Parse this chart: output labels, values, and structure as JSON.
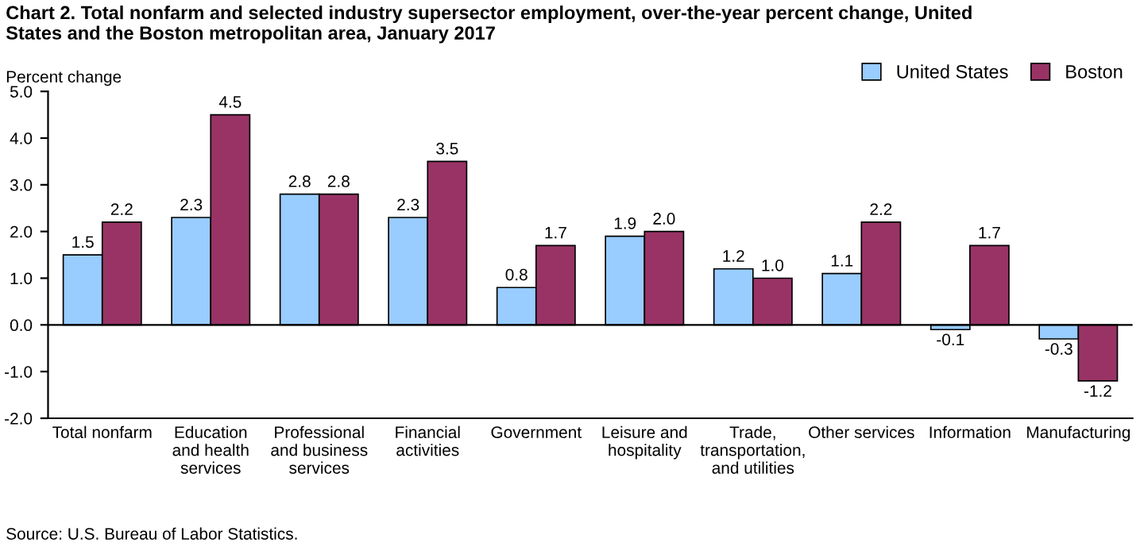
{
  "chart_data": {
    "type": "bar",
    "title": "Chart 2. Total nonfarm and selected industry supersector employment, over-the-year percent change, United\nStates and the Boston metropolitan area, January 2017",
    "ylabel": "Percent change",
    "categories": [
      "Total nonfarm",
      "Education\nand health\nservices",
      "Professional\nand business\nservices",
      "Financial\nactivities",
      "Government",
      "Leisure and\nhospitality",
      "Trade,\ntransportation,\nand utilities",
      "Other services",
      "Information",
      "Manufacturing"
    ],
    "series": [
      {
        "name": "United States",
        "color": "#99ccff",
        "values": [
          1.5,
          2.3,
          2.8,
          2.3,
          0.8,
          1.9,
          1.2,
          1.1,
          -0.1,
          -0.3
        ],
        "value_labels": [
          "1.5",
          "2.3",
          "2.8",
          "2.3",
          "0.8",
          "1.9",
          "1.2",
          "1.1",
          "-0.1",
          "-0.3"
        ]
      },
      {
        "name": "Boston",
        "color": "#993366",
        "values": [
          2.2,
          4.5,
          2.8,
          3.5,
          1.7,
          2.0,
          1.0,
          2.2,
          1.7,
          -1.2
        ],
        "value_labels": [
          "2.2",
          "4.5",
          "2.8",
          "3.5",
          "1.7",
          "2.0",
          "1.0",
          "2.2",
          "1.7",
          "-1.2"
        ]
      }
    ],
    "ylim": [
      -2,
      5
    ],
    "yticks": [
      {
        "value": -2,
        "label": "-2.0"
      },
      {
        "value": -1,
        "label": "-1.0"
      },
      {
        "value": 0,
        "label": "0.0"
      },
      {
        "value": 1,
        "label": "1.0"
      },
      {
        "value": 2,
        "label": "2.0"
      },
      {
        "value": 3,
        "label": "3.0"
      },
      {
        "value": 4,
        "label": "4.0"
      },
      {
        "value": 5,
        "label": "5.0"
      }
    ],
    "legend": "top right",
    "annotations": [
      "Source: U.S. Bureau of Labor Statistics."
    ]
  }
}
